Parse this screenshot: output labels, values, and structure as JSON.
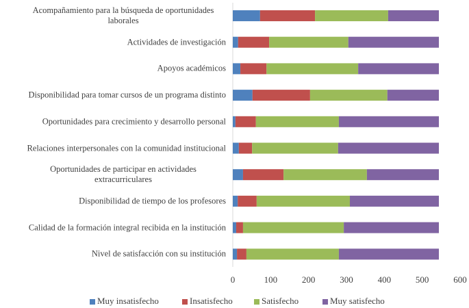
{
  "chart_data": {
    "type": "stacked_barh",
    "categories": [
      "Acompañamiento para la búsqueda de oportunidades laborales",
      "Actividades de investigación",
      "Apoyos académicos",
      "Disponibilidad para tomar cursos de un programa distinto",
      "Oportunidades para crecimiento y desarrollo personal",
      "Relaciones interpersonales con la comunidad institucional",
      "Oportunidades de participar en actividades extracurriculares",
      "Disponibilidad de tiempo de los profesores",
      "Calidad de la formación integral recibida en la institución",
      "Nivel de satisfacción con su institución"
    ],
    "series": [
      {
        "name": "Muy insatisfecho",
        "color": "#4f81bd",
        "values": [
          72,
          14,
          20,
          52,
          7,
          16,
          27,
          13,
          9,
          11
        ]
      },
      {
        "name": "Insatisfecho",
        "color": "#c0504d",
        "values": [
          145,
          82,
          69,
          152,
          54,
          35,
          107,
          50,
          18,
          25
        ]
      },
      {
        "name": "Satisfecho",
        "color": "#9bbb59",
        "values": [
          193,
          209,
          242,
          204,
          219,
          227,
          220,
          246,
          266,
          244
        ]
      },
      {
        "name": "Muy satisfecho",
        "color": "#8064a2",
        "values": [
          134,
          239,
          213,
          136,
          264,
          266,
          190,
          235,
          251,
          264
        ]
      }
    ],
    "xlim": [
      0,
      600
    ],
    "xticks": [
      0,
      100,
      200,
      300,
      400,
      500,
      600
    ],
    "grid": false,
    "legend": "bottom"
  }
}
